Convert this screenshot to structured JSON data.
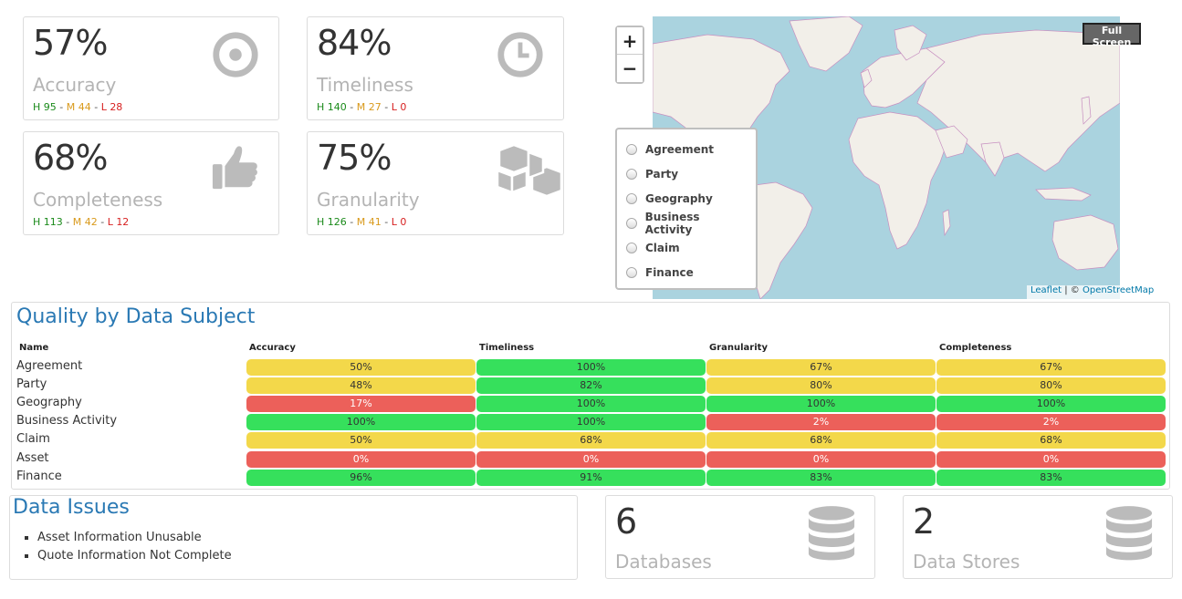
{
  "kpis": [
    {
      "value": "57%",
      "label": "Accuracy",
      "h": "H 95",
      "m": "M 44",
      "l": "L 28",
      "icon": "target-icon"
    },
    {
      "value": "84%",
      "label": "Timeliness",
      "h": "H 140",
      "m": "M 27",
      "l": "L 0",
      "icon": "clock-icon"
    },
    {
      "value": "68%",
      "label": "Completeness",
      "h": "H 113",
      "m": "M 42",
      "l": "L 12",
      "icon": "thumbs-up-icon"
    },
    {
      "value": "75%",
      "label": "Granularity",
      "h": "H 126",
      "m": "M 41",
      "l": "L 0",
      "icon": "cubes-icon"
    }
  ],
  "map": {
    "zoom_in": "+",
    "zoom_out": "−",
    "fullscreen": "Full Screen",
    "layers": [
      "Agreement",
      "Party",
      "Geography",
      "Business Activity",
      "Claim",
      "Finance"
    ],
    "attribution_leaflet": "Leaflet",
    "attribution_sep": " | © ",
    "attribution_osm": "OpenStreetMap",
    "water_color": "#aad3df",
    "land_color": "#f2efe9",
    "border_color": "#c78fc0"
  },
  "quality": {
    "title": "Quality by Data Subject",
    "columns": [
      "Name",
      "Accuracy",
      "Timeliness",
      "Granularity",
      "Completeness"
    ],
    "rows": [
      {
        "name": "Agreement",
        "cells": [
          {
            "v": "50%",
            "c": "yellow"
          },
          {
            "v": "100%",
            "c": "green"
          },
          {
            "v": "67%",
            "c": "yellow"
          },
          {
            "v": "67%",
            "c": "yellow"
          }
        ]
      },
      {
        "name": "Party",
        "cells": [
          {
            "v": "48%",
            "c": "yellow"
          },
          {
            "v": "82%",
            "c": "green"
          },
          {
            "v": "80%",
            "c": "yellow"
          },
          {
            "v": "80%",
            "c": "yellow"
          }
        ]
      },
      {
        "name": "Geography",
        "cells": [
          {
            "v": "17%",
            "c": "red"
          },
          {
            "v": "100%",
            "c": "green"
          },
          {
            "v": "100%",
            "c": "green"
          },
          {
            "v": "100%",
            "c": "green"
          }
        ]
      },
      {
        "name": "Business Activity",
        "cells": [
          {
            "v": "100%",
            "c": "green"
          },
          {
            "v": "100%",
            "c": "green"
          },
          {
            "v": "2%",
            "c": "red"
          },
          {
            "v": "2%",
            "c": "red"
          }
        ]
      },
      {
        "name": "Claim",
        "cells": [
          {
            "v": "50%",
            "c": "yellow"
          },
          {
            "v": "68%",
            "c": "yellow"
          },
          {
            "v": "68%",
            "c": "yellow"
          },
          {
            "v": "68%",
            "c": "yellow"
          }
        ]
      },
      {
        "name": "Asset",
        "cells": [
          {
            "v": "0%",
            "c": "red"
          },
          {
            "v": "0%",
            "c": "red"
          },
          {
            "v": "0%",
            "c": "red"
          },
          {
            "v": "0%",
            "c": "red"
          }
        ]
      },
      {
        "name": "Finance",
        "cells": [
          {
            "v": "96%",
            "c": "green"
          },
          {
            "v": "91%",
            "c": "green"
          },
          {
            "v": "83%",
            "c": "green"
          },
          {
            "v": "83%",
            "c": "green"
          }
        ]
      }
    ]
  },
  "issues": {
    "title": "Data Issues",
    "items": [
      "Asset Information Unusable",
      "Quote Information Not Complete"
    ]
  },
  "stores": [
    {
      "value": "6",
      "label": "Databases",
      "icon": "database-icon"
    },
    {
      "value": "2",
      "label": "Data Stores",
      "icon": "database-icon"
    }
  ]
}
